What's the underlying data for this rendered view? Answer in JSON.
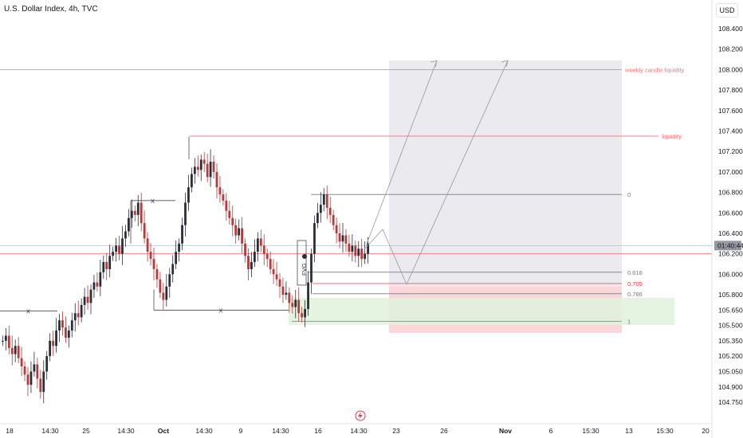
{
  "header": {
    "symbol": "U.S. Dollar Index",
    "interval": "4h",
    "source": "TVC",
    "separator": ", "
  },
  "currency": "USD",
  "colors": {
    "up": "#2a2e39",
    "down": "#b23b3b",
    "level_red": "#f0737a",
    "level_gray": "#787b86",
    "grid_border": "#e0e3eb",
    "fvg": "#2a2e39",
    "target_zone": "#ebebef",
    "stop_zone": "#fbd0d3",
    "demand_zone": "#dff2dc"
  },
  "chart_data": {
    "type": "candlestick",
    "ylim": [
      104.65,
      108.7
    ],
    "yticks": [
      "108.400",
      "108.200",
      "108.000",
      "107.800",
      "107.600",
      "107.400",
      "107.200",
      "107.000",
      "106.800",
      "106.600",
      "106.400",
      "106.200",
      "106.000",
      "105.800",
      "105.650",
      "105.500",
      "105.350",
      "105.200",
      "105.050",
      "104.900",
      "104.750"
    ],
    "xticks": [
      "18",
      "14:30",
      "25",
      "14:30",
      "Oct",
      "14:30",
      "9",
      "14:30",
      "16",
      "14:30",
      "23",
      "26",
      "Nov",
      "6",
      "15:30",
      "13",
      "15:30",
      "20"
    ],
    "last_price_label": "01:40:44",
    "last_price": 106.28,
    "candles_start": 105.35,
    "candle_path": [
      105.35,
      105.4,
      105.28,
      105.22,
      105.3,
      105.18,
      105.1,
      105.02,
      104.92,
      105.05,
      105.12,
      104.98,
      104.85,
      105.05,
      105.2,
      105.35,
      105.3,
      105.45,
      105.55,
      105.48,
      105.38,
      105.45,
      105.55,
      105.62,
      105.58,
      105.7,
      105.78,
      105.72,
      105.85,
      105.92,
      105.88,
      106.02,
      106.12,
      106.05,
      106.18,
      106.22,
      106.28,
      106.2,
      106.35,
      106.42,
      106.55,
      106.62,
      106.58,
      106.7,
      106.5,
      106.35,
      106.22,
      106.15,
      106.05,
      105.95,
      105.82,
      105.75,
      105.88,
      106.0,
      106.1,
      106.22,
      106.3,
      106.48,
      106.7,
      106.85,
      106.98,
      107.05,
      107.02,
      107.12,
      107.08,
      106.95,
      107.1,
      107.0,
      106.85,
      106.78,
      106.72,
      106.62,
      106.55,
      106.48,
      106.38,
      106.45,
      106.3,
      106.18,
      106.05,
      106.12,
      106.22,
      106.35,
      106.28,
      106.2,
      106.15,
      106.05,
      106.0,
      105.95,
      105.88,
      105.8,
      105.82,
      105.72,
      105.68,
      105.75,
      105.62,
      105.58,
      105.66,
      105.92,
      106.2,
      106.5,
      106.6,
      106.68,
      106.78,
      106.65,
      106.58,
      106.48,
      106.4,
      106.32,
      106.38,
      106.3,
      106.22,
      106.28,
      106.18,
      106.25,
      106.15,
      106.2,
      106.3
    ],
    "levels": [
      {
        "label": "weekly candle liquidity",
        "price": 108.0
      },
      {
        "label": "liquidity",
        "price": 107.35
      },
      {
        "label": "",
        "price": 106.2
      }
    ],
    "fib": [
      {
        "label": "0",
        "price": 106.78
      },
      {
        "label": "0.618",
        "price": 106.02
      },
      {
        "label": "0.705",
        "price": 105.91
      },
      {
        "label": "0.786",
        "price": 105.81
      },
      {
        "label": "1",
        "price": 105.54
      }
    ],
    "swing_marks": [
      {
        "label": "X",
        "price": 105.64
      },
      {
        "label": "X",
        "price": 106.72
      },
      {
        "label": "X",
        "price": 105.65
      }
    ],
    "fvg_label": "FVG"
  }
}
